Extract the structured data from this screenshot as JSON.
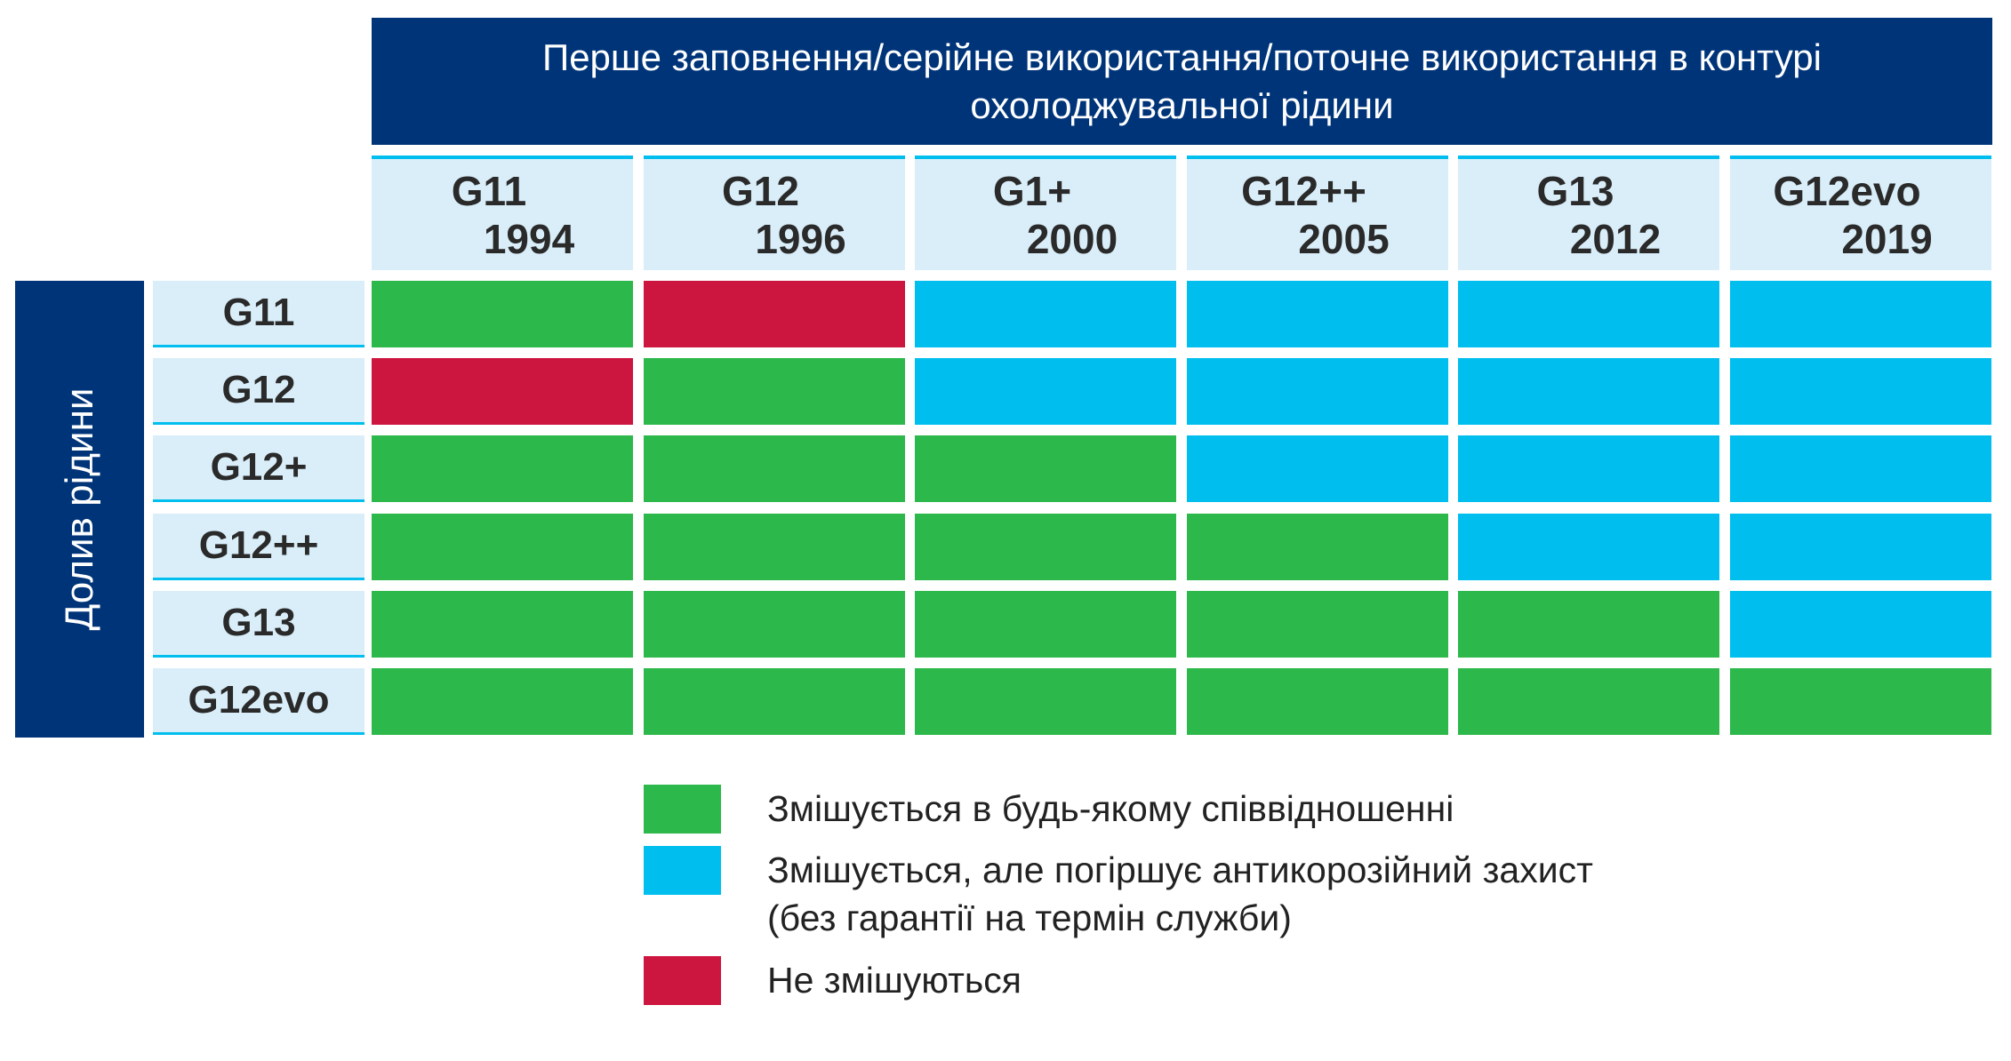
{
  "header": {
    "title": "Перше заповнення/серійне використання/поточне використання в контурі охолоджувальної рідини"
  },
  "side_label": "Долив рідини",
  "columns": [
    {
      "name": "G11",
      "year": "1994"
    },
    {
      "name": "G12",
      "year": "1996"
    },
    {
      "name": "G1+",
      "year": "2000"
    },
    {
      "name": "G12++",
      "year": "2005"
    },
    {
      "name": "G13",
      "year": "2012"
    },
    {
      "name": "G12evo",
      "year": "2019"
    }
  ],
  "rows": [
    {
      "label": "G11",
      "cells": [
        0,
        2,
        1,
        1,
        1,
        1
      ]
    },
    {
      "label": "G12",
      "cells": [
        2,
        0,
        1,
        1,
        1,
        1
      ]
    },
    {
      "label": "G12+",
      "cells": [
        0,
        0,
        0,
        1,
        1,
        1
      ]
    },
    {
      "label": "G12++",
      "cells": [
        0,
        0,
        0,
        0,
        1,
        1
      ]
    },
    {
      "label": "G13",
      "cells": [
        0,
        0,
        0,
        0,
        0,
        1
      ]
    },
    {
      "label": "G12evo",
      "cells": [
        0,
        0,
        0,
        0,
        0,
        0
      ]
    }
  ],
  "legend": [
    {
      "color": "#2db84b",
      "text": "Змішується в будь-якому співвідношенні"
    },
    {
      "color": "#00bfef",
      "text": "Змішується, але погіршує антикорозійний захист (без гарантії на термін служби)"
    },
    {
      "color": "#cc163f",
      "text": "Не змішуються"
    }
  ]
}
